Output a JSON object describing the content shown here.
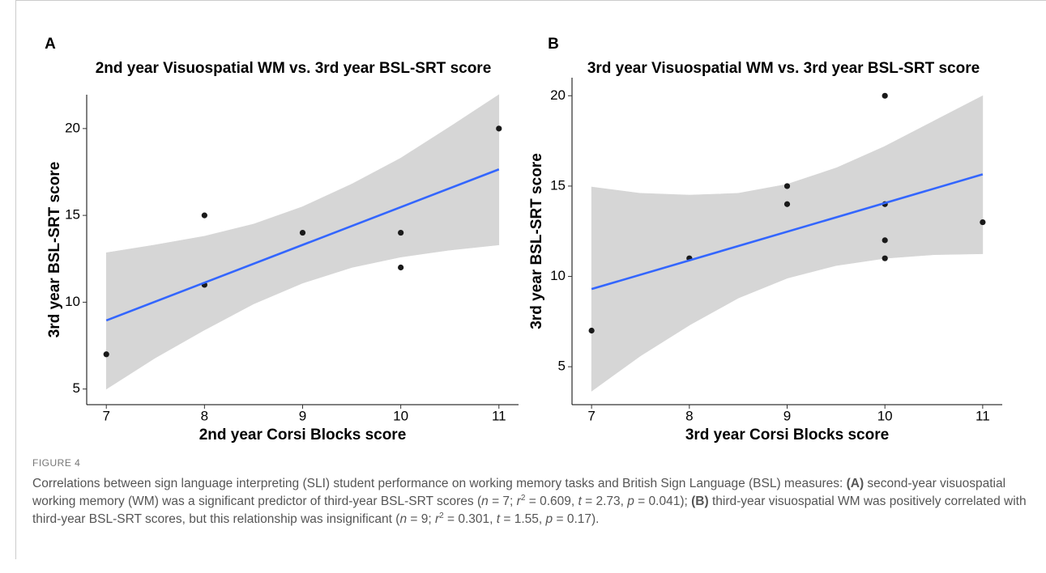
{
  "chart_data": [
    {
      "type": "scatter",
      "panel": "A",
      "title": "2nd year Visuospatial WM vs. 3rd year BSL-SRT score",
      "xlabel": "2nd year Corsi Blocks score",
      "ylabel": "3rd year BSL-SRT score",
      "x": [
        7,
        8,
        8,
        9,
        10,
        10,
        11
      ],
      "values": [
        7,
        15,
        11,
        14,
        14,
        12,
        20
      ],
      "color": "#1a1a1a",
      "fit": {
        "x": [
          7,
          11
        ],
        "values": [
          8.95,
          17.65
        ],
        "color": "#3366ff"
      },
      "band": {
        "x": [
          7,
          7.5,
          8,
          8.5,
          9,
          9.5,
          10,
          10.5,
          11
        ],
        "lower": [
          5.0,
          6.8,
          8.4,
          9.9,
          11.1,
          12.0,
          12.6,
          13.0,
          13.3
        ],
        "upper": [
          12.85,
          13.3,
          13.8,
          14.5,
          15.5,
          16.8,
          18.3,
          20.1,
          21.95
        ],
        "color": "#d6d6d6"
      },
      "xlim": [
        6.8,
        11.2
      ],
      "ylim": [
        4.1,
        21.95
      ],
      "xticks": [
        7,
        8,
        9,
        10,
        11
      ],
      "yticks": [
        5,
        10,
        15,
        20
      ]
    },
    {
      "type": "scatter",
      "panel": "B",
      "title": "3rd year Visuospatial WM vs. 3rd year BSL-SRT score",
      "xlabel": "3rd year Corsi Blocks score",
      "ylabel": "3rd year BSL-SRT score",
      "x": [
        7,
        8,
        9,
        9,
        10,
        10,
        10,
        10,
        11
      ],
      "values": [
        7,
        11,
        15,
        14,
        20,
        14,
        12,
        11,
        13
      ],
      "color": "#1a1a1a",
      "fit": {
        "x": [
          7,
          11
        ],
        "values": [
          9.3,
          15.65
        ],
        "color": "#3366ff"
      },
      "band": {
        "x": [
          7,
          7.5,
          8,
          8.5,
          9,
          9.5,
          10,
          10.5,
          11
        ],
        "lower": [
          3.65,
          5.6,
          7.3,
          8.8,
          9.9,
          10.6,
          11.0,
          11.2,
          11.25
        ],
        "upper": [
          14.95,
          14.6,
          14.5,
          14.6,
          15.1,
          16.0,
          17.2,
          18.6,
          20.0
        ],
        "color": "#d6d6d6"
      },
      "xlim": [
        6.8,
        11.2
      ],
      "ylim": [
        2.9,
        21.0
      ],
      "xticks": [
        7,
        8,
        9,
        10,
        11
      ],
      "yticks": [
        5,
        10,
        15,
        20
      ]
    }
  ],
  "caption": {
    "label": "FIGURE 4",
    "runs": [
      {
        "text": "Correlations between sign language interpreting (SLI) student performance on working memory tasks and British Sign Language (BSL) measures: "
      },
      {
        "text": "(A)",
        "style": "bold"
      },
      {
        "text": " second-year visuospatial working memory (WM) was a significant predictor of third-year BSL-SRT scores ("
      },
      {
        "text": "n",
        "style": "italic"
      },
      {
        "text": " = 7; "
      },
      {
        "text": "r",
        "style": "italic"
      },
      {
        "text": "2",
        "style": "sup"
      },
      {
        "text": " = 0.609, "
      },
      {
        "text": "t",
        "style": "italic"
      },
      {
        "text": " = 2.73, "
      },
      {
        "text": "p",
        "style": "italic"
      },
      {
        "text": " = 0.041); "
      },
      {
        "text": "(B)",
        "style": "bold"
      },
      {
        "text": " third-year visuospatial WM was positively correlated with third-year BSL-SRT scores, but this relationship was insignificant ("
      },
      {
        "text": "n",
        "style": "italic"
      },
      {
        "text": " = 9; "
      },
      {
        "text": "r",
        "style": "italic"
      },
      {
        "text": "2",
        "style": "sup"
      },
      {
        "text": " = 0.301, "
      },
      {
        "text": "t",
        "style": "italic"
      },
      {
        "text": " = 1.55, "
      },
      {
        "text": "p",
        "style": "italic"
      },
      {
        "text": " = 0.17)."
      }
    ]
  }
}
